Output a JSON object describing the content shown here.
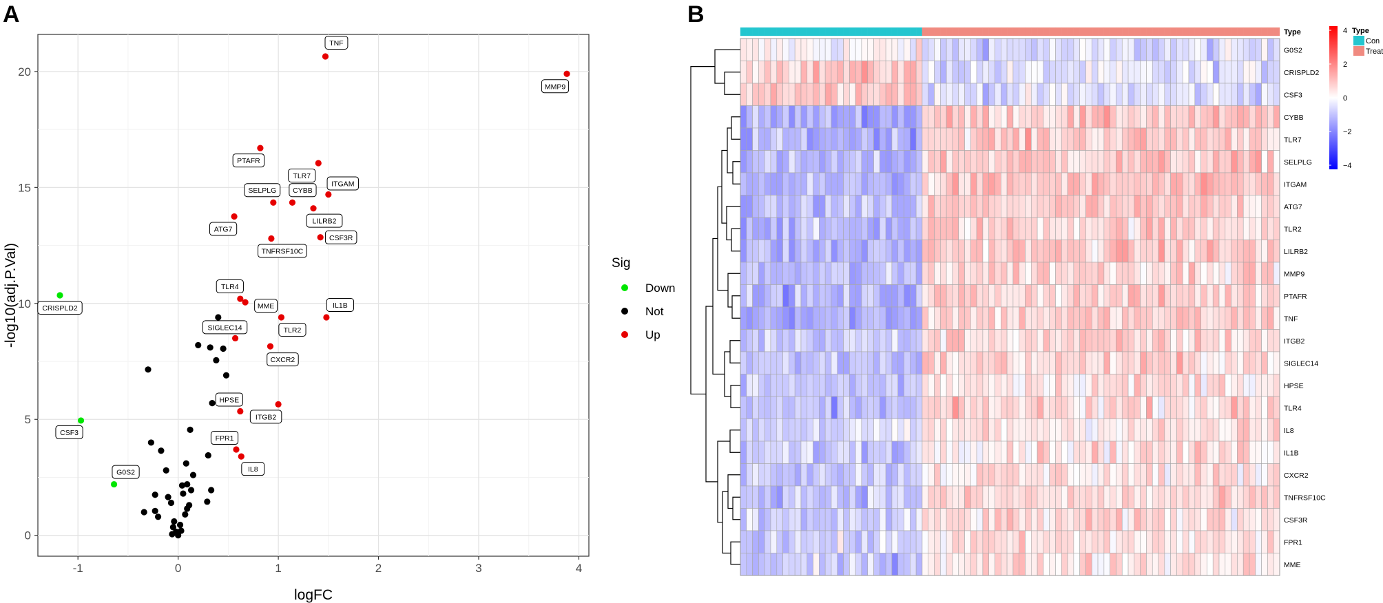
{
  "panels": {
    "a_label": "A",
    "b_label": "B"
  },
  "chart_data": [
    {
      "type": "scatter",
      "title": "",
      "xlabel": "logFC",
      "ylabel": "-log10(adj.P.Val)",
      "xlim": [
        -1.4,
        4.1
      ],
      "ylim": [
        -0.9,
        21.6
      ],
      "xticks": [
        -1,
        0,
        1,
        2,
        3,
        4
      ],
      "yticks": [
        0,
        5,
        10,
        15,
        20
      ],
      "legend": {
        "title": "Sig",
        "placement": "right",
        "entries": [
          {
            "label": "Down",
            "color": "#00e600"
          },
          {
            "label": "Not",
            "color": "#000000"
          },
          {
            "label": "Up",
            "color": "#e60000"
          }
        ]
      },
      "colors": {
        "Down": "#00e600",
        "Not": "#000000",
        "Up": "#e60000"
      },
      "labeled_points": [
        {
          "label": "TNF",
          "x": 1.47,
          "y": 20.65,
          "sig": "Up"
        },
        {
          "label": "MMP9",
          "x": 3.88,
          "y": 19.9,
          "sig": "Up"
        },
        {
          "label": "PTAFR",
          "x": 0.82,
          "y": 16.7,
          "sig": "Up"
        },
        {
          "label": "TLR7",
          "x": 1.4,
          "y": 16.05,
          "sig": "Up"
        },
        {
          "label": "ITGAM",
          "x": 1.5,
          "y": 14.7,
          "sig": "Up"
        },
        {
          "label": "SELPLG",
          "x": 0.95,
          "y": 14.35,
          "sig": "Up"
        },
        {
          "label": "CYBB",
          "x": 1.14,
          "y": 14.35,
          "sig": "Up"
        },
        {
          "label": "LILRB2",
          "x": 1.35,
          "y": 14.1,
          "sig": "Up"
        },
        {
          "label": "ATG7",
          "x": 0.56,
          "y": 13.75,
          "sig": "Up"
        },
        {
          "label": "CSF3R",
          "x": 1.42,
          "y": 12.85,
          "sig": "Up"
        },
        {
          "label": "TNFRSF10C",
          "x": 0.93,
          "y": 12.8,
          "sig": "Up"
        },
        {
          "label": "CRISPLD2",
          "x": -1.18,
          "y": 10.35,
          "sig": "Down"
        },
        {
          "label": "TLR4",
          "x": 0.62,
          "y": 10.2,
          "sig": "Up"
        },
        {
          "label": "MME",
          "x": 0.67,
          "y": 10.05,
          "sig": "Up"
        },
        {
          "label": "TLR2",
          "x": 1.03,
          "y": 9.4,
          "sig": "Up"
        },
        {
          "label": "IL1B",
          "x": 1.48,
          "y": 9.4,
          "sig": "Up"
        },
        {
          "label": "SIGLEC14",
          "x": 0.57,
          "y": 8.5,
          "sig": "Up"
        },
        {
          "label": "CXCR2",
          "x": 0.92,
          "y": 8.15,
          "sig": "Up"
        },
        {
          "label": "HPSE",
          "x": 0.62,
          "y": 5.35,
          "sig": "Up"
        },
        {
          "label": "ITGB2",
          "x": 1.0,
          "y": 5.65,
          "sig": "Up"
        },
        {
          "label": "CSF3",
          "x": -0.97,
          "y": 4.95,
          "sig": "Down"
        },
        {
          "label": "FPR1",
          "x": 0.58,
          "y": 3.7,
          "sig": "Up"
        },
        {
          "label": "IL8",
          "x": 0.63,
          "y": 3.4,
          "sig": "Up"
        },
        {
          "label": "G0S2",
          "x": -0.64,
          "y": 2.2,
          "sig": "Down"
        }
      ],
      "unlabeled_points": [
        [
          0.4,
          9.4
        ],
        [
          0.2,
          8.2
        ],
        [
          0.32,
          8.1
        ],
        [
          0.45,
          8.05
        ],
        [
          0.38,
          7.55
        ],
        [
          -0.3,
          7.15
        ],
        [
          0.48,
          6.9
        ],
        [
          0.34,
          5.7
        ],
        [
          0.12,
          4.55
        ],
        [
          -0.27,
          4.0
        ],
        [
          -0.17,
          3.65
        ],
        [
          0.3,
          3.45
        ],
        [
          0.08,
          3.1
        ],
        [
          -0.12,
          2.8
        ],
        [
          0.15,
          2.6
        ],
        [
          0.09,
          2.2
        ],
        [
          0.04,
          2.15
        ],
        [
          0.13,
          1.95
        ],
        [
          0.33,
          1.95
        ],
        [
          -0.23,
          1.75
        ],
        [
          -0.1,
          1.65
        ],
        [
          0.05,
          1.8
        ],
        [
          0.29,
          1.45
        ],
        [
          -0.07,
          1.4
        ],
        [
          0.11,
          1.3
        ],
        [
          -0.23,
          1.05
        ],
        [
          0.09,
          1.15
        ],
        [
          -0.34,
          1.0
        ],
        [
          -0.2,
          0.8
        ],
        [
          0.07,
          0.9
        ],
        [
          -0.04,
          0.6
        ],
        [
          0.02,
          0.45
        ],
        [
          -0.05,
          0.35
        ],
        [
          0.03,
          0.2
        ],
        [
          -0.02,
          0.15
        ],
        [
          -0.06,
          0.05
        ],
        [
          0.0,
          0.0
        ]
      ]
    },
    {
      "type": "heatmap",
      "title": "",
      "annotation_label": "Type",
      "groups": [
        {
          "name": "Con",
          "color": "#24c6cf",
          "n_samples": 30
        },
        {
          "name": "Treat",
          "color": "#f08a80",
          "n_samples": 59
        }
      ],
      "rows": [
        "G0S2",
        "CRISPLD2",
        "CSF3",
        "CYBB",
        "TLR7",
        "SELPLG",
        "ITGAM",
        "ATG7",
        "TLR2",
        "LILRB2",
        "MMP9",
        "PTAFR",
        "TNF",
        "ITGB2",
        "SIGLEC14",
        "HPSE",
        "TLR4",
        "IL8",
        "IL1B",
        "CXCR2",
        "TNFRSF10C",
        "CSF3R",
        "FPR1",
        "MME"
      ],
      "color_scale": {
        "min": -4,
        "max": 4,
        "low": "#0000ff",
        "mid": "#ffffff",
        "high": "#ff0000",
        "ticks": [
          "4",
          "2",
          "0",
          "−2",
          "−4"
        ]
      },
      "row_group_means": {
        "G0S2": {
          "Con": 0.0,
          "Treat": -0.6
        },
        "CRISPLD2": {
          "Con": 0.9,
          "Treat": -0.5
        },
        "CSF3": {
          "Con": 1.0,
          "Treat": -0.5
        },
        "CYBB": {
          "Con": -1.3,
          "Treat": 0.8
        },
        "TLR7": {
          "Con": -1.2,
          "Treat": 0.8
        },
        "SELPLG": {
          "Con": -1.2,
          "Treat": 0.8
        },
        "ITGAM": {
          "Con": -1.2,
          "Treat": 0.8
        },
        "ATG7": {
          "Con": -1.1,
          "Treat": 0.7
        },
        "TLR2": {
          "Con": -1.1,
          "Treat": 0.7
        },
        "LILRB2": {
          "Con": -1.2,
          "Treat": 0.8
        },
        "MMP9": {
          "Con": -1.1,
          "Treat": 0.7
        },
        "PTAFR": {
          "Con": -1.2,
          "Treat": 0.7
        },
        "TNF": {
          "Con": -1.2,
          "Treat": 0.7
        },
        "ITGB2": {
          "Con": -0.8,
          "Treat": 0.6
        },
        "SIGLEC14": {
          "Con": -0.9,
          "Treat": 0.6
        },
        "HPSE": {
          "Con": -0.9,
          "Treat": 0.5
        },
        "TLR4": {
          "Con": -1.1,
          "Treat": 0.6
        },
        "IL8": {
          "Con": -0.6,
          "Treat": 0.4
        },
        "IL1B": {
          "Con": -0.8,
          "Treat": 0.5
        },
        "CXCR2": {
          "Con": -0.7,
          "Treat": 0.4
        },
        "TNFRSF10C": {
          "Con": -0.8,
          "Treat": 0.5
        },
        "CSF3R": {
          "Con": -0.8,
          "Treat": 0.5
        },
        "FPR1": {
          "Con": -0.7,
          "Treat": 0.4
        },
        "MME": {
          "Con": -0.9,
          "Treat": 0.5
        }
      }
    }
  ]
}
